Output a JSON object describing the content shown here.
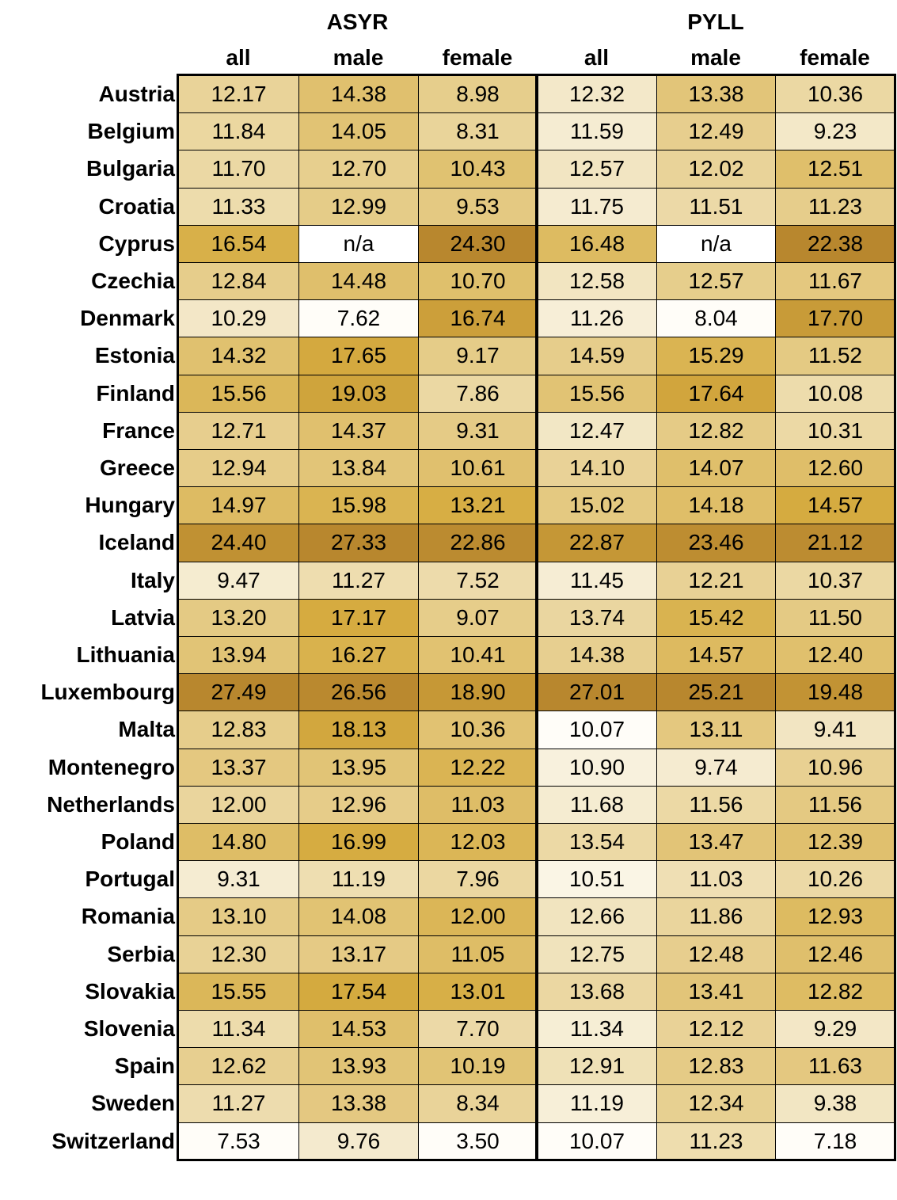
{
  "table": {
    "groups": [
      "ASYR",
      "PYLL"
    ],
    "columns": [
      "all",
      "male",
      "female",
      "all",
      "male",
      "female"
    ],
    "rows": [
      {
        "country": "Austria",
        "values": [
          "12.17",
          "14.38",
          "8.98",
          "12.32",
          "13.38",
          "10.36"
        ]
      },
      {
        "country": "Belgium",
        "values": [
          "11.84",
          "14.05",
          "8.31",
          "11.59",
          "12.49",
          "9.23"
        ]
      },
      {
        "country": "Bulgaria",
        "values": [
          "11.70",
          "12.70",
          "10.43",
          "12.57",
          "12.02",
          "12.51"
        ]
      },
      {
        "country": "Croatia",
        "values": [
          "11.33",
          "12.99",
          "9.53",
          "11.75",
          "11.51",
          "11.23"
        ]
      },
      {
        "country": "Cyprus",
        "values": [
          "16.54",
          "n/a",
          "24.30",
          "16.48",
          "n/a",
          "22.38"
        ]
      },
      {
        "country": "Czechia",
        "values": [
          "12.84",
          "14.48",
          "10.70",
          "12.58",
          "12.57",
          "11.67"
        ]
      },
      {
        "country": "Denmark",
        "values": [
          "10.29",
          "7.62",
          "16.74",
          "11.26",
          "8.04",
          "17.70"
        ]
      },
      {
        "country": "Estonia",
        "values": [
          "14.32",
          "17.65",
          "9.17",
          "14.59",
          "15.29",
          "11.52"
        ]
      },
      {
        "country": "Finland",
        "values": [
          "15.56",
          "19.03",
          "7.86",
          "15.56",
          "17.64",
          "10.08"
        ]
      },
      {
        "country": "France",
        "values": [
          "12.71",
          "14.37",
          "9.31",
          "12.47",
          "12.82",
          "10.31"
        ]
      },
      {
        "country": "Greece",
        "values": [
          "12.94",
          "13.84",
          "10.61",
          "14.10",
          "14.07",
          "12.60"
        ]
      },
      {
        "country": "Hungary",
        "values": [
          "14.97",
          "15.98",
          "13.21",
          "15.02",
          "14.18",
          "14.57"
        ]
      },
      {
        "country": "Iceland",
        "values": [
          "24.40",
          "27.33",
          "22.86",
          "22.87",
          "23.46",
          "21.12"
        ]
      },
      {
        "country": "Italy",
        "values": [
          "9.47",
          "11.27",
          "7.52",
          "11.45",
          "12.21",
          "10.37"
        ]
      },
      {
        "country": "Latvia",
        "values": [
          "13.20",
          "17.17",
          "9.07",
          "13.74",
          "15.42",
          "11.50"
        ]
      },
      {
        "country": "Lithuania",
        "values": [
          "13.94",
          "16.27",
          "10.41",
          "14.38",
          "14.57",
          "12.40"
        ]
      },
      {
        "country": "Luxembourg",
        "values": [
          "27.49",
          "26.56",
          "18.90",
          "27.01",
          "25.21",
          "19.48"
        ]
      },
      {
        "country": "Malta",
        "values": [
          "12.83",
          "18.13",
          "10.36",
          "10.07",
          "13.11",
          "9.41"
        ]
      },
      {
        "country": "Montenegro",
        "values": [
          "13.37",
          "13.95",
          "12.22",
          "10.90",
          "9.74",
          "10.96"
        ]
      },
      {
        "country": "Netherlands",
        "values": [
          "12.00",
          "12.96",
          "11.03",
          "11.68",
          "11.56",
          "11.56"
        ]
      },
      {
        "country": "Poland",
        "values": [
          "14.80",
          "16.99",
          "12.03",
          "13.54",
          "13.47",
          "12.39"
        ]
      },
      {
        "country": "Portugal",
        "values": [
          "9.31",
          "11.19",
          "7.96",
          "10.51",
          "11.03",
          "10.26"
        ]
      },
      {
        "country": "Romania",
        "values": [
          "13.10",
          "14.08",
          "12.00",
          "12.66",
          "11.86",
          "12.93"
        ]
      },
      {
        "country": "Serbia",
        "values": [
          "12.30",
          "13.17",
          "11.05",
          "12.75",
          "12.48",
          "12.46"
        ]
      },
      {
        "country": "Slovakia",
        "values": [
          "15.55",
          "17.54",
          "13.01",
          "13.68",
          "13.41",
          "12.82"
        ]
      },
      {
        "country": "Slovenia",
        "values": [
          "11.34",
          "14.53",
          "7.70",
          "11.34",
          "12.12",
          "9.29"
        ]
      },
      {
        "country": "Spain",
        "values": [
          "12.62",
          "13.93",
          "10.19",
          "12.91",
          "12.83",
          "11.63"
        ]
      },
      {
        "country": "Sweden",
        "values": [
          "11.27",
          "13.38",
          "8.34",
          "11.19",
          "12.34",
          "9.38"
        ]
      },
      {
        "country": "Switzerland",
        "values": [
          "7.53",
          "9.76",
          "3.50",
          "10.07",
          "11.23",
          "7.18"
        ]
      }
    ]
  }
}
